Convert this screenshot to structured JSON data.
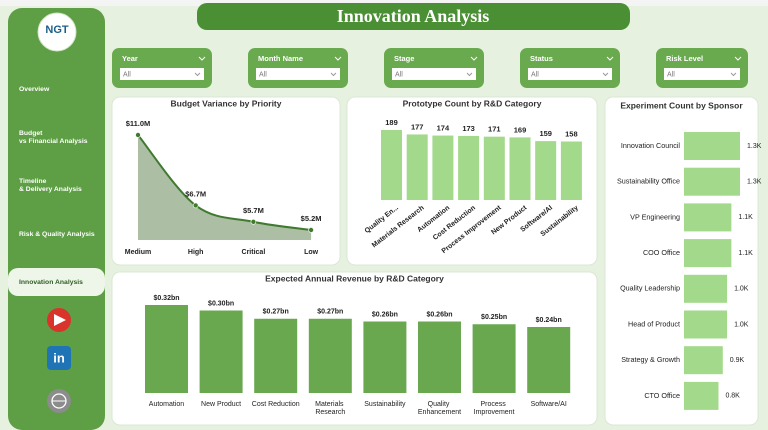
{
  "header": {
    "title": "Innovation Analysis"
  },
  "sidebar": {
    "logo": "NGT",
    "nav": [
      "Overview",
      "Budget vs Financial Analysis",
      "Timeline & Delivery Analysis",
      "Risk & Quality Analysis",
      "Innovation Analysis"
    ],
    "active": 4
  },
  "filters": [
    {
      "label": "Year",
      "value": "All"
    },
    {
      "label": "Month Name",
      "value": "All"
    },
    {
      "label": "Stage",
      "value": "All"
    },
    {
      "label": "Status",
      "value": "All"
    },
    {
      "label": "Risk Level",
      "value": "All"
    }
  ],
  "chart_data": [
    {
      "type": "area",
      "title": "Budget Variance by Priority",
      "categories": [
        "Medium",
        "High",
        "Critical",
        "Low"
      ],
      "values": [
        11.0,
        6.7,
        5.7,
        5.2
      ],
      "value_labels": [
        "$11.0M",
        "$6.7M",
        "$5.7M",
        "$5.2M"
      ],
      "color": "#3f7a2e"
    },
    {
      "type": "bar",
      "title": "Prototype Count by R&D Category",
      "categories": [
        "Quality En...",
        "Materials Research",
        "Automation",
        "Cost Reduction",
        "Process Improvement",
        "New Product",
        "Software/AI",
        "Sustainability"
      ],
      "values": [
        189,
        177,
        174,
        173,
        171,
        169,
        159,
        158
      ],
      "color": "#a3d98a"
    },
    {
      "type": "bar",
      "title": "Expected Annual Revenue by R&D Category",
      "categories": [
        "Automation",
        "New Product",
        "Cost Reduction",
        "Materials Research",
        "Sustainability",
        "Quality Enhancement",
        "Process Improvement",
        "Software/AI"
      ],
      "values": [
        0.32,
        0.3,
        0.27,
        0.27,
        0.26,
        0.26,
        0.25,
        0.24
      ],
      "value_labels": [
        "$0.32bn",
        "$0.30bn",
        "$0.27bn",
        "$0.27bn",
        "$0.26bn",
        "$0.26bn",
        "$0.25bn",
        "$0.24bn"
      ],
      "color": "#6aa84f"
    },
    {
      "type": "hbar",
      "title": "Experiment Count by Sponsor",
      "categories": [
        "Innovation Council",
        "Sustainability Office",
        "VP Engineering",
        "COO Office",
        "Quality Leadership",
        "Head of Product",
        "Strategy & Growth",
        "CTO Office"
      ],
      "values": [
        1.3,
        1.3,
        1.1,
        1.1,
        1.0,
        1.0,
        0.9,
        0.8
      ],
      "value_labels": [
        "1.3K",
        "1.3K",
        "1.1K",
        "1.1K",
        "1.0K",
        "1.0K",
        "0.9K",
        "0.8K"
      ],
      "color": "#a3d98a"
    }
  ]
}
